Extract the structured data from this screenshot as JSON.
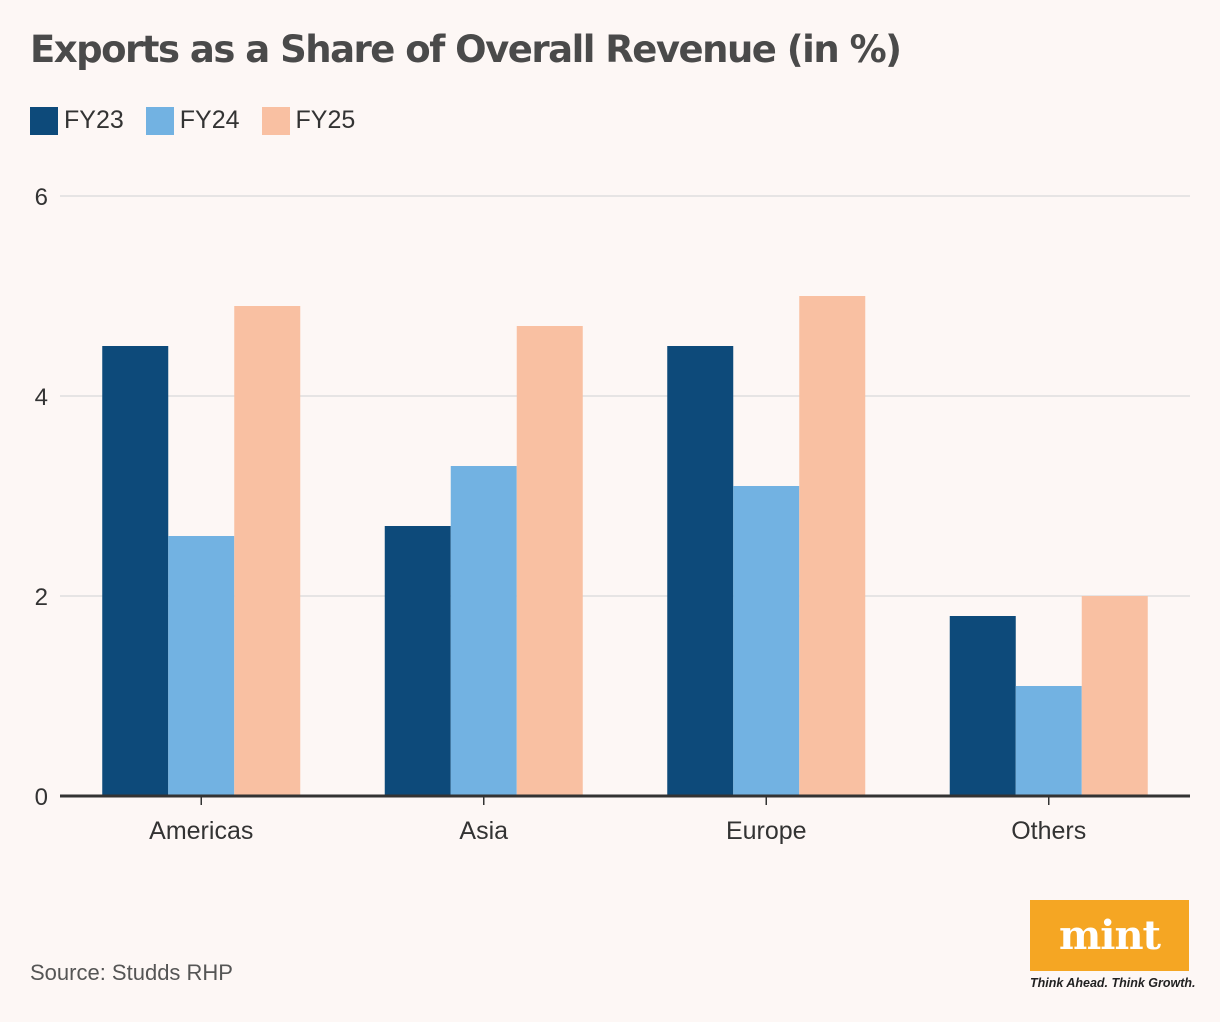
{
  "chart_data": {
    "type": "bar",
    "title": "Exports as a Share of Overall Revenue (in %)",
    "categories": [
      "Americas",
      "Asia",
      "Europe",
      "Others"
    ],
    "series": [
      {
        "name": "FY23",
        "values": [
          4.5,
          2.7,
          4.5,
          1.8
        ],
        "color": "#0d4a7a"
      },
      {
        "name": "FY24",
        "values": [
          2.6,
          3.3,
          3.1,
          1.1
        ],
        "color": "#72b2e2"
      },
      {
        "name": "FY25",
        "values": [
          4.9,
          4.7,
          5.0,
          2.0
        ],
        "color": "#f9c0a2"
      }
    ],
    "ylim": [
      0,
      6
    ],
    "yticks": [
      0,
      2,
      4,
      6
    ],
    "grid": true,
    "legend_position": "top-left"
  },
  "source": "Source: Studds RHP",
  "logo": {
    "text": "mint",
    "tagline": "Think Ahead. Think Growth.",
    "color": "#f5a623"
  }
}
